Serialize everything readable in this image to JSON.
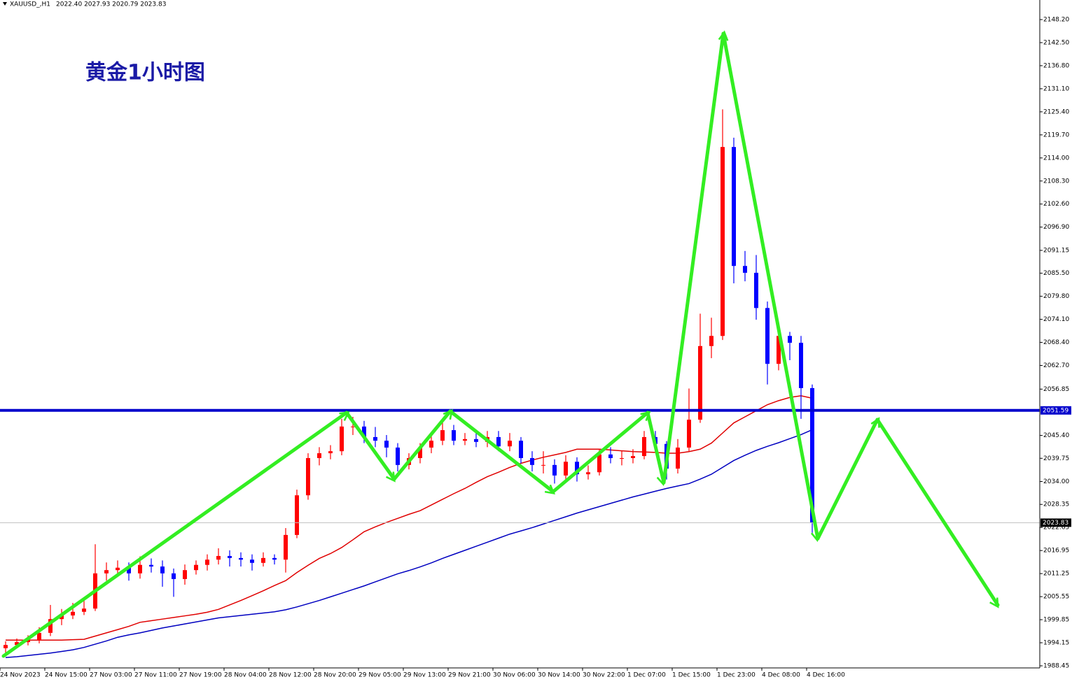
{
  "chart_data": {
    "type": "candlestick",
    "symbol": "XAUUSD_,H1",
    "ohlc_text": "2022.40 2027.93 2020.79 2023.83",
    "annotation": "黄金1小时图",
    "categories": [
      "24 Nov 2023",
      null,
      null,
      null,
      "24 Nov 15:00",
      null,
      null,
      null,
      "27 Nov 03:00",
      null,
      null,
      null,
      "27 Nov 11:00",
      null,
      null,
      null,
      "27 Nov 19:00",
      null,
      null,
      null,
      "28 Nov 04:00",
      null,
      null,
      null,
      "28 Nov 12:00",
      null,
      null,
      null,
      "28 Nov 20:00",
      null,
      null,
      null,
      "29 Nov 05:00",
      null,
      null,
      null,
      "29 Nov 13:00",
      null,
      null,
      null,
      "29 Nov 21:00",
      null,
      null,
      null,
      "30 Nov 06:00",
      null,
      null,
      null,
      "30 Nov 14:00",
      null,
      null,
      null,
      "30 Nov 22:00",
      null,
      null,
      null,
      "1 Dec 07:00",
      null,
      null,
      null,
      "1 Dec 15:00",
      null,
      null,
      null,
      "1 Dec 23:00",
      null,
      null,
      null,
      "4 Dec 08:00",
      null,
      null,
      null,
      "4 Dec 16:00"
    ],
    "open": [
      1992.8,
      1993.6,
      1994.3,
      1994.8,
      1996.6,
      2000.0,
      2000.9,
      2001.8,
      2002.6,
      2011.3,
      2012.1,
      2012.7,
      2011.3,
      2013.4,
      2013.0,
      2011.3,
      2009.9,
      2012.1,
      2013.4,
      2014.7,
      2015.6,
      2015.1,
      2014.7,
      2013.9,
      2015.1,
      2014.7,
      2020.8,
      2030.6,
      2039.8,
      2041.0,
      2041.5,
      2047.6,
      2047.6,
      2045.0,
      2044.1,
      2042.4,
      2038.1,
      2039.8,
      2042.4,
      2044.1,
      2046.7,
      2044.1,
      2044.5,
      2043.8,
      2045.0,
      2042.7,
      2044.1,
      2039.8,
      2038.1,
      2038.1,
      2035.5,
      2038.9,
      2035.8,
      2036.3,
      2040.7,
      2039.8,
      2039.8,
      2040.3,
      2045.0,
      2043.3,
      2037.2,
      2042.4,
      2049.3,
      2067.5,
      2070.0,
      2116.7,
      2087.3,
      2085.6,
      2076.9,
      2063.1,
      2070.0,
      2068.3,
      2057.1
    ],
    "high": [
      1994.5,
      1995.2,
      1996.0,
      1998.0,
      2003.5,
      2002.5,
      2004.0,
      2005.0,
      2018.5,
      2014.0,
      2014.5,
      2014.0,
      2015.5,
      2015.0,
      2014.5,
      2012.5,
      2013.5,
      2014.5,
      2016.0,
      2017.5,
      2017.0,
      2016.5,
      2016.0,
      2016.5,
      2016.0,
      2022.5,
      2032.0,
      2041.0,
      2042.5,
      2043.0,
      2049.5,
      2050.0,
      2049.0,
      2047.5,
      2045.5,
      2043.5,
      2041.0,
      2043.5,
      2045.5,
      2049.0,
      2048.0,
      2046.0,
      2046.0,
      2046.5,
      2046.5,
      2046.0,
      2045.0,
      2041.5,
      2041.5,
      2039.5,
      2040.5,
      2040.0,
      2038.0,
      2042.0,
      2042.5,
      2041.5,
      2042.0,
      2046.5,
      2046.5,
      2044.0,
      2044.5,
      2057.0,
      2075.5,
      2074.5,
      2126.0,
      2119.0,
      2091.0,
      2090.0,
      2078.5,
      2071.5,
      2071.0,
      2070.0,
      2058.0
    ],
    "low": [
      1991.5,
      1992.8,
      1993.5,
      1994.0,
      1995.8,
      1998.5,
      2000.0,
      2001.0,
      2002.0,
      2009.5,
      2010.5,
      2009.5,
      2010.0,
      2011.5,
      2008.0,
      2005.5,
      2008.5,
      2011.0,
      2012.0,
      2013.5,
      2013.0,
      2013.0,
      2012.0,
      2013.0,
      2013.5,
      2011.5,
      2020.0,
      2029.5,
      2038.0,
      2039.5,
      2040.5,
      2045.5,
      2043.5,
      2042.5,
      2040.0,
      2036.5,
      2037.0,
      2038.5,
      2041.0,
      2043.0,
      2043.0,
      2043.0,
      2042.5,
      2042.5,
      2041.5,
      2041.5,
      2038.5,
      2036.5,
      2036.0,
      2033.5,
      2034.5,
      2034.0,
      2034.5,
      2035.5,
      2038.5,
      2038.0,
      2038.5,
      2039.5,
      2041.5,
      2034.5,
      2036.0,
      2041.5,
      2048.5,
      2064.5,
      2069.0,
      2083.0,
      2083.5,
      2074.0,
      2058.0,
      2061.5,
      2064.0,
      2049.5,
      2020.79
    ],
    "close": [
      1993.6,
      1994.3,
      1994.8,
      1996.6,
      2000.0,
      2000.9,
      2001.8,
      2002.6,
      2011.3,
      2012.1,
      2012.7,
      2011.3,
      2013.4,
      2013.0,
      2011.3,
      2009.9,
      2012.1,
      2013.4,
      2014.7,
      2015.6,
      2015.1,
      2014.7,
      2013.9,
      2015.1,
      2014.7,
      2020.8,
      2030.6,
      2039.8,
      2041.0,
      2041.5,
      2047.6,
      2047.6,
      2045.0,
      2044.1,
      2042.4,
      2038.1,
      2039.8,
      2042.4,
      2044.1,
      2046.7,
      2044.1,
      2044.5,
      2043.8,
      2045.0,
      2042.7,
      2044.1,
      2039.8,
      2038.1,
      2038.1,
      2035.5,
      2038.9,
      2035.8,
      2036.3,
      2040.7,
      2039.8,
      2039.8,
      2040.3,
      2045.0,
      2043.3,
      2037.2,
      2042.4,
      2049.3,
      2067.5,
      2070.0,
      2116.7,
      2087.3,
      2085.6,
      2076.9,
      2063.1,
      2070.0,
      2068.3,
      2057.1,
      2023.83
    ],
    "up_color": "#ff0000",
    "down_color": "#0000ff",
    "series": [
      {
        "color": "#e00000",
        "values": [
          1994.8,
          1994.8,
          1994.8,
          1994.8,
          1994.8,
          1994.8,
          1994.9,
          1995.0,
          1995.8,
          1996.6,
          1997.4,
          1998.2,
          1999.2,
          1999.6,
          2000.0,
          2000.4,
          2000.8,
          2001.2,
          2001.7,
          2002.4,
          2003.5,
          2004.6,
          2005.8,
          2007.0,
          2008.3,
          2009.5,
          2011.5,
          2013.3,
          2015.0,
          2016.2,
          2017.7,
          2019.6,
          2021.6,
          2022.8,
          2023.9,
          2024.9,
          2025.9,
          2026.8,
          2028.2,
          2029.6,
          2031.0,
          2032.3,
          2033.8,
          2035.2,
          2036.3,
          2037.5,
          2038.5,
          2039.3,
          2040.0,
          2040.6,
          2041.2,
          2042.0,
          2042.0,
          2042.0,
          2041.8,
          2041.6,
          2041.4,
          2041.3,
          2041.2,
          2041.0,
          2041.0,
          2041.4,
          2042.0,
          2043.5,
          2046.0,
          2048.5,
          2050.0,
          2051.5,
          2053.0,
          2054.0,
          2054.8,
          2055.2,
          2054.6
        ]
      },
      {
        "color": "#0000c0",
        "values": [
          1990.5,
          1990.7,
          1991.0,
          1991.3,
          1991.6,
          1992.0,
          1992.4,
          1993.0,
          1993.8,
          1994.6,
          1995.5,
          1996.1,
          1996.6,
          1997.2,
          1997.8,
          1998.3,
          1998.8,
          1999.3,
          1999.8,
          2000.3,
          2000.6,
          2000.9,
          2001.2,
          2001.5,
          2001.8,
          2002.3,
          2003.0,
          2003.8,
          2004.6,
          2005.5,
          2006.4,
          2007.3,
          2008.2,
          2009.2,
          2010.2,
          2011.2,
          2012.0,
          2012.9,
          2013.9,
          2015.0,
          2016.0,
          2017.0,
          2018.0,
          2019.0,
          2020.0,
          2021.0,
          2021.8,
          2022.6,
          2023.5,
          2024.4,
          2025.3,
          2026.2,
          2027.0,
          2027.8,
          2028.6,
          2029.4,
          2030.2,
          2030.9,
          2031.6,
          2032.3,
          2032.9,
          2033.5,
          2034.6,
          2035.8,
          2037.5,
          2039.2,
          2040.5,
          2041.7,
          2042.7,
          2043.6,
          2044.6,
          2045.6,
          2046.8
        ]
      }
    ],
    "levels": [
      {
        "value": 2051.59,
        "color": "#0000cc"
      }
    ],
    "current_price": 2023.83,
    "ylim": [
      1987.93,
      2153.04
    ],
    "yticks": [
      {
        "value": 2148.2,
        "label": "2148.20"
      },
      {
        "value": 2142.5,
        "label": "2142.50"
      },
      {
        "value": 2136.8,
        "label": "2136.80"
      },
      {
        "value": 2131.1,
        "label": "2131.10"
      },
      {
        "value": 2125.4,
        "label": "2125.40"
      },
      {
        "value": 2119.7,
        "label": "2119.70"
      },
      {
        "value": 2114,
        "label": "2114.00"
      },
      {
        "value": 2108.3,
        "label": "2108.30"
      },
      {
        "value": 2102.6,
        "label": "2102.60"
      },
      {
        "value": 2096.9,
        "label": "2096.90"
      },
      2091.15,
      {
        "value": 2085.5,
        "label": "2085.50"
      },
      {
        "value": 2079.8,
        "label": "2079.80"
      },
      {
        "value": 2074.1,
        "label": "2074.10"
      },
      {
        "value": 2068.4,
        "label": "2068.40"
      },
      {
        "value": 2062.7,
        "label": "2062.70"
      },
      2056.85,
      {
        "value": 2045.4,
        "label": "2045.40"
      },
      2039.75,
      {
        "value": 2034,
        "label": "2034.00"
      },
      2028.35,
      2022.65,
      2016.95,
      2011.25,
      2005.55,
      1999.85,
      1994.15,
      1988.45
    ]
  }
}
